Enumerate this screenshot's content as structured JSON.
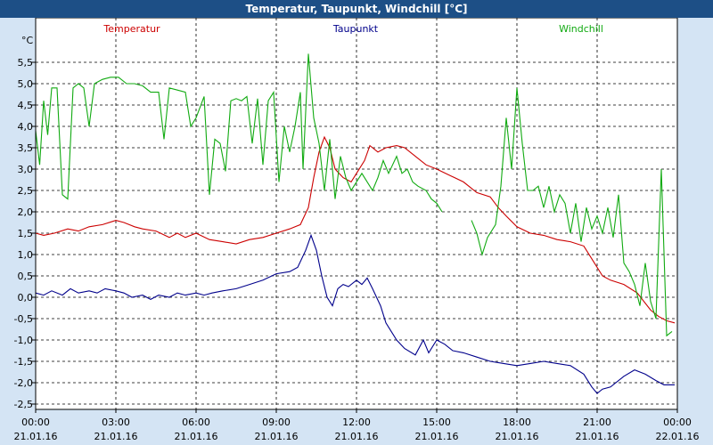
{
  "window": {
    "title": "Temperatur, Taupunkt, Windchill [°C]"
  },
  "chart_data": {
    "type": "line",
    "title": "Temperatur, Taupunkt, Windchill [°C]",
    "ylabel": "°C",
    "ylim": [
      -2.5,
      6.0
    ],
    "xlim": [
      0,
      24
    ],
    "grid": true,
    "legend_position": "top",
    "y_ticks": [
      5.5,
      5.0,
      4.5,
      4.0,
      3.5,
      3.0,
      2.5,
      2.0,
      1.5,
      1.0,
      0.5,
      0.0,
      -0.5,
      -1.0,
      -1.5,
      -2.0,
      -2.5
    ],
    "y_tick_labels": [
      "5,5",
      "5,0",
      "4,5",
      "4,0",
      "3,5",
      "3,0",
      "2,5",
      "2,0",
      "1,5",
      "1,0",
      "0,5",
      "0,0",
      "-0,5",
      "-1,0",
      "-1,5",
      "-2,0",
      "-2,5"
    ],
    "x_tick_labels": [
      {
        "time": "00:00",
        "date": "21.01.16"
      },
      {
        "time": "03:00",
        "date": "21.01.16"
      },
      {
        "time": "06:00",
        "date": "21.01.16"
      },
      {
        "time": "09:00",
        "date": "21.01.16"
      },
      {
        "time": "12:00",
        "date": "21.01.16"
      },
      {
        "time": "15:00",
        "date": "21.01.16"
      },
      {
        "time": "18:00",
        "date": "21.01.16"
      },
      {
        "time": "21:00",
        "date": "21.01.16"
      },
      {
        "time": "00:00",
        "date": "22.01.16"
      }
    ],
    "series": [
      {
        "name": "Temperatur",
        "color": "#cc0000",
        "points": [
          [
            0,
            1.5
          ],
          [
            0.3,
            1.45
          ],
          [
            0.7,
            1.5
          ],
          [
            1.2,
            1.6
          ],
          [
            1.6,
            1.55
          ],
          [
            2,
            1.65
          ],
          [
            2.5,
            1.7
          ],
          [
            3,
            1.8
          ],
          [
            3.3,
            1.75
          ],
          [
            3.7,
            1.65
          ],
          [
            4,
            1.6
          ],
          [
            4.5,
            1.55
          ],
          [
            5,
            1.4
          ],
          [
            5.3,
            1.5
          ],
          [
            5.6,
            1.4
          ],
          [
            6,
            1.5
          ],
          [
            6.5,
            1.35
          ],
          [
            7,
            1.3
          ],
          [
            7.5,
            1.25
          ],
          [
            8,
            1.35
          ],
          [
            8.5,
            1.4
          ],
          [
            9,
            1.5
          ],
          [
            9.5,
            1.6
          ],
          [
            9.9,
            1.7
          ],
          [
            10.2,
            2.1
          ],
          [
            10.4,
            2.8
          ],
          [
            10.6,
            3.4
          ],
          [
            10.8,
            3.75
          ],
          [
            11,
            3.5
          ],
          [
            11.2,
            3.0
          ],
          [
            11.5,
            2.8
          ],
          [
            11.8,
            2.7
          ],
          [
            12,
            2.9
          ],
          [
            12.3,
            3.2
          ],
          [
            12.5,
            3.55
          ],
          [
            12.8,
            3.4
          ],
          [
            13.1,
            3.5
          ],
          [
            13.5,
            3.55
          ],
          [
            13.8,
            3.5
          ],
          [
            14.2,
            3.3
          ],
          [
            14.6,
            3.1
          ],
          [
            15,
            3.0
          ],
          [
            15.5,
            2.85
          ],
          [
            16,
            2.7
          ],
          [
            16.5,
            2.45
          ],
          [
            17,
            2.35
          ],
          [
            17.3,
            2.1
          ],
          [
            17.6,
            1.9
          ],
          [
            18,
            1.65
          ],
          [
            18.5,
            1.5
          ],
          [
            19,
            1.45
          ],
          [
            19.5,
            1.35
          ],
          [
            20,
            1.3
          ],
          [
            20.5,
            1.2
          ],
          [
            20.8,
            0.9
          ],
          [
            21.2,
            0.5
          ],
          [
            21.5,
            0.4
          ],
          [
            22,
            0.3
          ],
          [
            22.5,
            0.1
          ],
          [
            23,
            -0.3
          ],
          [
            23.3,
            -0.45
          ],
          [
            23.6,
            -0.55
          ],
          [
            23.9,
            -0.6
          ]
        ]
      },
      {
        "name": "Taupunkt",
        "color": "#00008b",
        "points": [
          [
            0,
            0.1
          ],
          [
            0.3,
            0.05
          ],
          [
            0.6,
            0.15
          ],
          [
            1,
            0.05
          ],
          [
            1.3,
            0.2
          ],
          [
            1.6,
            0.1
          ],
          [
            2,
            0.15
          ],
          [
            2.3,
            0.1
          ],
          [
            2.6,
            0.2
          ],
          [
            3,
            0.15
          ],
          [
            3.3,
            0.1
          ],
          [
            3.6,
            0.0
          ],
          [
            4,
            0.05
          ],
          [
            4.3,
            -0.05
          ],
          [
            4.6,
            0.05
          ],
          [
            5,
            0.0
          ],
          [
            5.3,
            0.1
          ],
          [
            5.6,
            0.05
          ],
          [
            6,
            0.1
          ],
          [
            6.3,
            0.05
          ],
          [
            6.6,
            0.1
          ],
          [
            7,
            0.15
          ],
          [
            7.5,
            0.2
          ],
          [
            8,
            0.3
          ],
          [
            8.5,
            0.4
          ],
          [
            9,
            0.55
          ],
          [
            9.5,
            0.6
          ],
          [
            9.8,
            0.7
          ],
          [
            10.1,
            1.1
          ],
          [
            10.3,
            1.45
          ],
          [
            10.5,
            1.1
          ],
          [
            10.7,
            0.5
          ],
          [
            10.9,
            0.0
          ],
          [
            11.1,
            -0.2
          ],
          [
            11.3,
            0.2
          ],
          [
            11.5,
            0.3
          ],
          [
            11.7,
            0.25
          ],
          [
            12,
            0.4
          ],
          [
            12.2,
            0.3
          ],
          [
            12.4,
            0.45
          ],
          [
            12.6,
            0.2
          ],
          [
            12.9,
            -0.2
          ],
          [
            13.1,
            -0.6
          ],
          [
            13.3,
            -0.8
          ],
          [
            13.5,
            -1.0
          ],
          [
            13.8,
            -1.2
          ],
          [
            14.2,
            -1.35
          ],
          [
            14.5,
            -1.0
          ],
          [
            14.7,
            -1.3
          ],
          [
            15,
            -1.0
          ],
          [
            15.3,
            -1.1
          ],
          [
            15.6,
            -1.25
          ],
          [
            16,
            -1.3
          ],
          [
            16.5,
            -1.4
          ],
          [
            17,
            -1.5
          ],
          [
            17.5,
            -1.55
          ],
          [
            18,
            -1.6
          ],
          [
            18.5,
            -1.55
          ],
          [
            19,
            -1.5
          ],
          [
            19.5,
            -1.55
          ],
          [
            20,
            -1.6
          ],
          [
            20.5,
            -1.8
          ],
          [
            20.8,
            -2.1
          ],
          [
            21,
            -2.25
          ],
          [
            21.2,
            -2.15
          ],
          [
            21.5,
            -2.1
          ],
          [
            22,
            -1.85
          ],
          [
            22.4,
            -1.7
          ],
          [
            22.8,
            -1.8
          ],
          [
            23.2,
            -1.95
          ],
          [
            23.5,
            -2.05
          ],
          [
            23.9,
            -2.05
          ]
        ]
      },
      {
        "name": "Windchill",
        "color": "#11aa11",
        "points": [
          [
            0,
            3.9
          ],
          [
            0.15,
            3.1
          ],
          [
            0.3,
            4.6
          ],
          [
            0.45,
            3.8
          ],
          [
            0.6,
            4.9
          ],
          [
            0.8,
            4.9
          ],
          [
            1,
            2.4
          ],
          [
            1.2,
            2.3
          ],
          [
            1.4,
            4.9
          ],
          [
            1.6,
            5.0
          ],
          [
            1.8,
            4.9
          ],
          [
            2,
            4.0
          ],
          [
            2.2,
            5.0
          ],
          [
            2.5,
            5.1
          ],
          [
            2.8,
            5.15
          ],
          [
            3.1,
            5.15
          ],
          [
            3.4,
            5.0
          ],
          [
            3.7,
            5.0
          ],
          [
            4,
            4.95
          ],
          [
            4.3,
            4.8
          ],
          [
            4.6,
            4.8
          ],
          [
            4.8,
            3.7
          ],
          [
            5,
            4.9
          ],
          [
            5.3,
            4.85
          ],
          [
            5.6,
            4.8
          ],
          [
            5.8,
            4.0
          ],
          [
            6,
            4.2
          ],
          [
            6.3,
            4.7
          ],
          [
            6.5,
            2.4
          ],
          [
            6.7,
            3.7
          ],
          [
            6.9,
            3.6
          ],
          [
            7.1,
            2.95
          ],
          [
            7.3,
            4.6
          ],
          [
            7.5,
            4.65
          ],
          [
            7.7,
            4.6
          ],
          [
            7.9,
            4.7
          ],
          [
            8.1,
            3.6
          ],
          [
            8.3,
            4.65
          ],
          [
            8.5,
            3.1
          ],
          [
            8.7,
            4.6
          ],
          [
            8.9,
            4.8
          ],
          [
            9.1,
            2.7
          ],
          [
            9.3,
            4.0
          ],
          [
            9.5,
            3.4
          ],
          [
            9.7,
            4.0
          ],
          [
            9.9,
            4.8
          ],
          [
            10,
            3.0
          ],
          [
            10.2,
            5.7
          ],
          [
            10.4,
            4.2
          ],
          [
            10.6,
            3.6
          ],
          [
            10.8,
            2.5
          ],
          [
            11,
            3.7
          ],
          [
            11.2,
            2.3
          ],
          [
            11.4,
            3.3
          ],
          [
            11.6,
            2.8
          ],
          [
            11.8,
            2.5
          ],
          [
            12,
            2.7
          ],
          [
            12.2,
            2.9
          ],
          [
            12.4,
            2.7
          ],
          [
            12.6,
            2.5
          ],
          [
            12.8,
            2.8
          ],
          [
            13,
            3.2
          ],
          [
            13.2,
            2.9
          ],
          [
            13.5,
            3.3
          ],
          [
            13.7,
            2.9
          ],
          [
            13.9,
            3.0
          ],
          [
            14.1,
            2.7
          ],
          [
            14.3,
            2.6
          ],
          [
            14.6,
            2.5
          ],
          [
            14.8,
            2.3
          ],
          [
            15,
            2.2
          ],
          [
            15.2,
            2.0
          ],
          [
            null,
            null
          ],
          [
            16.3,
            1.8
          ],
          [
            16.5,
            1.5
          ],
          [
            16.7,
            1.0
          ],
          [
            16.9,
            1.4
          ],
          [
            17.2,
            1.7
          ],
          [
            17.4,
            2.6
          ],
          [
            17.6,
            4.2
          ],
          [
            17.8,
            3.0
          ],
          [
            18,
            4.9
          ],
          [
            18.2,
            3.6
          ],
          [
            18.4,
            2.5
          ],
          [
            18.6,
            2.5
          ],
          [
            18.8,
            2.6
          ],
          [
            19,
            2.1
          ],
          [
            19.2,
            2.6
          ],
          [
            19.4,
            2.0
          ],
          [
            19.6,
            2.4
          ],
          [
            19.8,
            2.2
          ],
          [
            20,
            1.5
          ],
          [
            20.2,
            2.2
          ],
          [
            20.4,
            1.3
          ],
          [
            20.6,
            2.1
          ],
          [
            20.8,
            1.6
          ],
          [
            21,
            1.9
          ],
          [
            21.2,
            1.5
          ],
          [
            21.4,
            2.1
          ],
          [
            21.6,
            1.4
          ],
          [
            21.8,
            2.4
          ],
          [
            22,
            0.8
          ],
          [
            22.2,
            0.6
          ],
          [
            22.4,
            0.3
          ],
          [
            22.6,
            -0.2
          ],
          [
            22.8,
            0.8
          ],
          [
            23,
            -0.1
          ],
          [
            23.2,
            -0.5
          ],
          [
            23.4,
            3.0
          ],
          [
            23.6,
            -0.9
          ],
          [
            23.8,
            -0.8
          ]
        ]
      }
    ]
  }
}
